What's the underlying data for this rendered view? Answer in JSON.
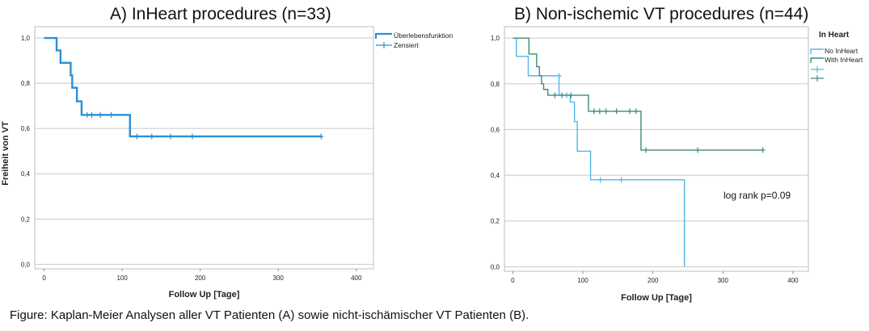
{
  "caption": "Figure: Kaplan-Meier Analysen aller VT Patienten (A) sowie nicht-ischämischer VT Patienten (B).",
  "chart_data": [
    {
      "type": "line",
      "title": "A) InHeart procedures (n=33)",
      "xlabel": "Follow Up [Tage]",
      "ylabel": "Freiheit von VT",
      "xlim": [
        -12,
        422
      ],
      "ylim": [
        -0.02,
        1.05
      ],
      "xticks": [
        0,
        100,
        200,
        300,
        400
      ],
      "yticks": [
        0.0,
        0.2,
        0.4,
        0.6,
        0.8,
        1.0
      ],
      "xtick_labels": [
        "0",
        "100",
        "200",
        "300",
        "400"
      ],
      "ytick_labels": [
        "0,0",
        "0,2",
        "0,4",
        "0,6",
        "0,8",
        "1,0"
      ],
      "grid": "horizontal",
      "legend_position": "top-right",
      "legend": [
        "Überlebensfunktion",
        "Zensiert"
      ],
      "series": [
        {
          "name": "Überlebensfunktion",
          "color": "#2b8fd6",
          "step_x": [
            0,
            16,
            21,
            34,
            36,
            42,
            48,
            110,
            355
          ],
          "step_y": [
            1.0,
            0.945,
            0.89,
            0.835,
            0.78,
            0.72,
            0.66,
            0.565,
            0.565
          ],
          "censored": [
            [
              55,
              0.66
            ],
            [
              61,
              0.66
            ],
            [
              72,
              0.66
            ],
            [
              86,
              0.66
            ],
            [
              119,
              0.565
            ],
            [
              138,
              0.565
            ],
            [
              162,
              0.565
            ],
            [
              190,
              0.565
            ],
            [
              355,
              0.565
            ]
          ]
        }
      ]
    },
    {
      "type": "line",
      "title": "B) Non-ischemic VT procedures (n=44)",
      "xlabel": "Follow Up [Tage]",
      "ylabel": "",
      "xlim": [
        -12,
        422
      ],
      "ylim": [
        -0.02,
        1.05
      ],
      "xticks": [
        0,
        100,
        200,
        300,
        400
      ],
      "yticks": [
        0.0,
        0.2,
        0.4,
        0.6,
        0.8,
        1.0
      ],
      "xtick_labels": [
        "0",
        "100",
        "200",
        "300",
        "400"
      ],
      "ytick_labels": [
        "0,0",
        "0,2",
        "0,4",
        "0,6",
        "0,8",
        "1,0"
      ],
      "grid": "horizontal",
      "legend_title": "In Heart",
      "legend_position": "top-right",
      "legend": [
        "No InHeart",
        "With InHeart"
      ],
      "annotation": "log rank p=0.09",
      "series": [
        {
          "name": "No InHeart",
          "color": "#54b5e8",
          "step_x": [
            0,
            5,
            22,
            66,
            82,
            88,
            92,
            111,
            245,
            245
          ],
          "step_y": [
            1.0,
            0.92,
            0.835,
            0.75,
            0.72,
            0.635,
            0.505,
            0.38,
            0.38,
            0.0
          ],
          "censored": [
            [
              66,
              0.835
            ],
            [
              77,
              0.75
            ],
            [
              125,
              0.38
            ],
            [
              155,
              0.38
            ]
          ]
        },
        {
          "name": "With InHeart",
          "color": "#3c8a80",
          "step_x": [
            0,
            23,
            34,
            38,
            41,
            44,
            50,
            108,
            183,
            357
          ],
          "step_y": [
            1.0,
            0.93,
            0.875,
            0.835,
            0.8,
            0.775,
            0.75,
            0.68,
            0.51,
            0.51
          ],
          "censored": [
            [
              60,
              0.75
            ],
            [
              70,
              0.75
            ],
            [
              83,
              0.75
            ],
            [
              116,
              0.68
            ],
            [
              124,
              0.68
            ],
            [
              133,
              0.68
            ],
            [
              148,
              0.68
            ],
            [
              167,
              0.68
            ],
            [
              176,
              0.68
            ],
            [
              190,
              0.51
            ],
            [
              264,
              0.51
            ],
            [
              357,
              0.51
            ]
          ]
        }
      ]
    }
  ]
}
